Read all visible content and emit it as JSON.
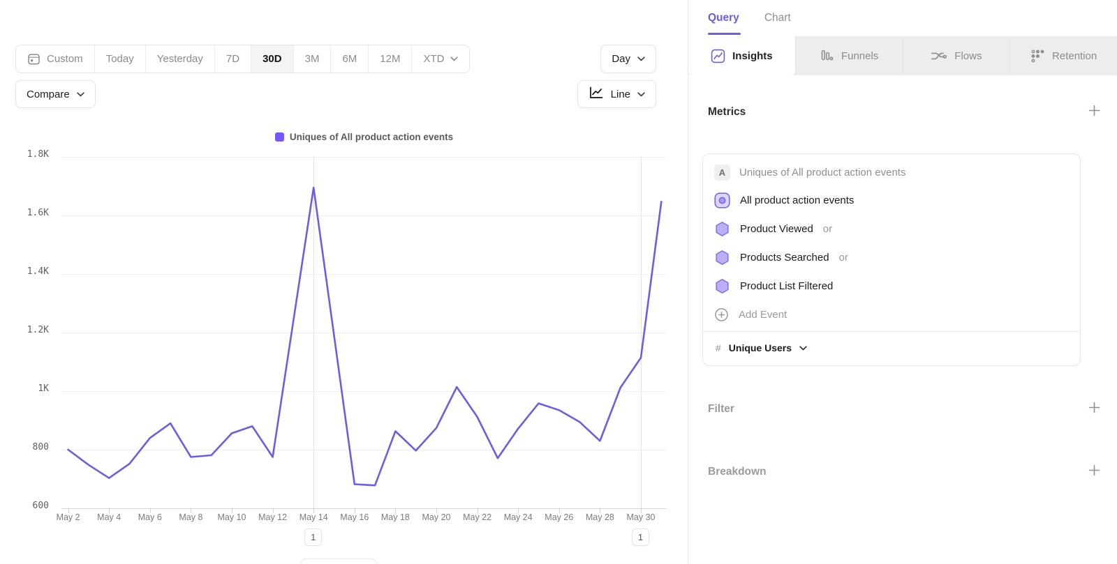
{
  "toolbar": {
    "ranges": [
      "Custom",
      "Today",
      "Yesterday",
      "7D",
      "30D",
      "3M",
      "6M",
      "12M",
      "XTD"
    ],
    "selected_range": "30D",
    "granularity_label": "Day",
    "compare_label": "Compare",
    "chart_type_label": "Line"
  },
  "chart_data": {
    "type": "line",
    "legend": "Uniques of All product action events",
    "legend_color": "#7856ff",
    "line_color": "#6c5ce8",
    "x": [
      "May 2",
      "May 3",
      "May 4",
      "May 5",
      "May 6",
      "May 7",
      "May 8",
      "May 9",
      "May 10",
      "May 11",
      "May 12",
      "May 13",
      "May 14",
      "May 15",
      "May 16",
      "May 17",
      "May 18",
      "May 19",
      "May 20",
      "May 21",
      "May 22",
      "May 23",
      "May 24",
      "May 25",
      "May 26",
      "May 27",
      "May 28",
      "May 29",
      "May 30",
      "May 31"
    ],
    "values": [
      800,
      748,
      703,
      752,
      840,
      890,
      775,
      781,
      856,
      880,
      775,
      1235,
      1695,
      1190,
      682,
      678,
      863,
      797,
      874,
      1014,
      912,
      771,
      872,
      958,
      935,
      895,
      830,
      1012,
      1114,
      1647
    ],
    "x_tick_labels": [
      "May 2",
      "May 4",
      "May 6",
      "May 8",
      "May 10",
      "May 12",
      "May 14",
      "May 16",
      "May 18",
      "May 20",
      "May 22",
      "May 24",
      "May 26",
      "May 28",
      "May 30"
    ],
    "y_tick_labels": [
      "1.8K",
      "1.6K",
      "1.4K",
      "1.2K",
      "1K",
      "800",
      "600"
    ],
    "ylim": [
      600,
      1800
    ],
    "grid": "horizontal",
    "legend_position": "top-center",
    "annotations": [
      {
        "label": "1",
        "date": "May 14",
        "index": 12
      },
      {
        "label": "1",
        "date": "May 30",
        "index": 28
      }
    ]
  },
  "panel": {
    "tabs": [
      {
        "label": "Query",
        "active": true
      },
      {
        "label": "Chart",
        "active": false
      }
    ],
    "subtabs": [
      {
        "label": "Insights",
        "icon": "insights-icon",
        "active": true
      },
      {
        "label": "Funnels",
        "icon": "funnels-icon",
        "active": false
      },
      {
        "label": "Flows",
        "icon": "flows-icon",
        "active": false
      },
      {
        "label": "Retention",
        "icon": "retention-icon",
        "active": false
      }
    ],
    "metrics": {
      "heading": "Metrics",
      "add_icon": "plus-icon",
      "card": {
        "series_letter": "A",
        "title": "Uniques of All product action events",
        "events": [
          {
            "name": "All product action events",
            "suffix": "",
            "icon": "all-events-icon"
          },
          {
            "name": "Product Viewed",
            "suffix": "or",
            "icon": "hexagon-icon"
          },
          {
            "name": "Products Searched",
            "suffix": "or",
            "icon": "hexagon-icon"
          },
          {
            "name": "Product List Filtered",
            "suffix": "",
            "icon": "hexagon-icon"
          }
        ],
        "add_event_label": "Add Event",
        "aggregation": {
          "symbol": "#",
          "label": "Unique Users"
        }
      }
    },
    "filter": {
      "heading": "Filter",
      "add_icon": "plus-icon"
    },
    "breakdown": {
      "heading": "Breakdown",
      "add_icon": "plus-icon"
    }
  }
}
